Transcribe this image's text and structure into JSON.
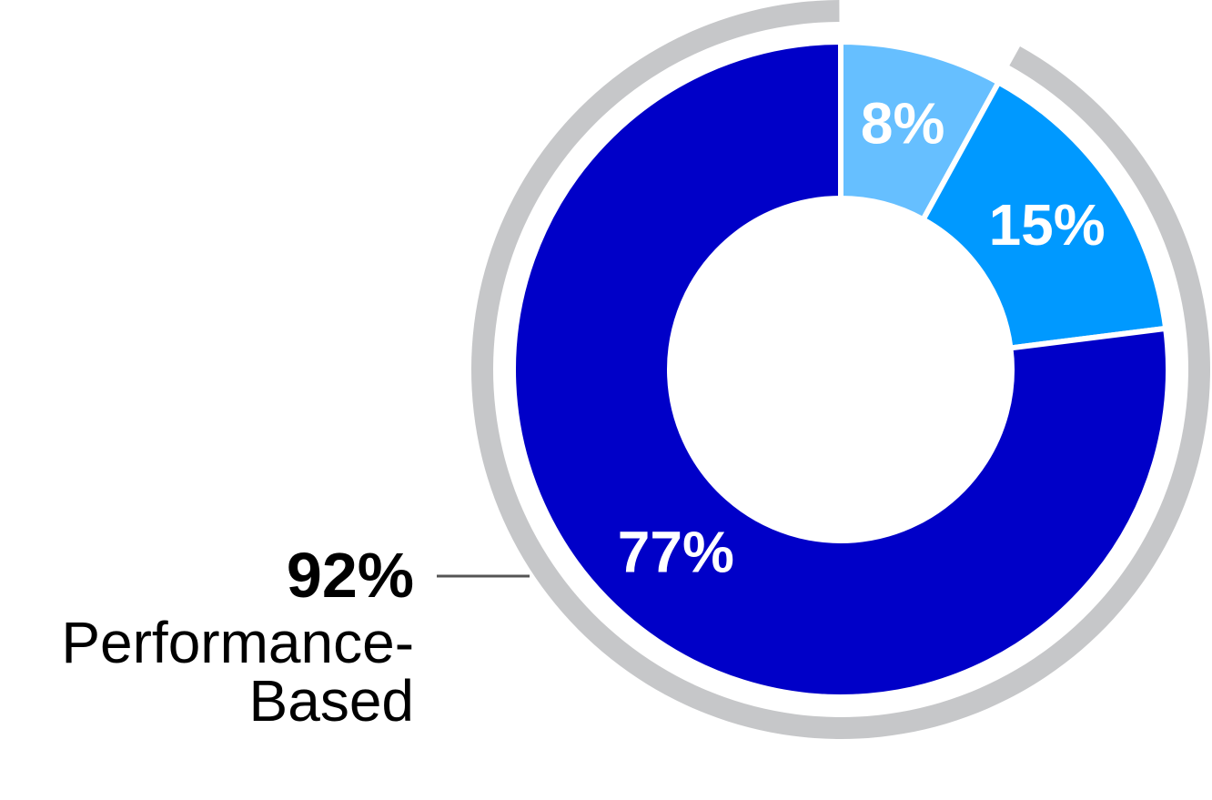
{
  "chart_data": {
    "type": "donut",
    "values": [
      8,
      15,
      77
    ],
    "value_labels": [
      "8%",
      "15%",
      "77%"
    ],
    "colors": [
      "#66bfff",
      "#0099ff",
      "#0000c8"
    ],
    "annotation": {
      "value": 92,
      "label": "92%",
      "text": "Performance-Based",
      "color": "#c6c7c9"
    }
  }
}
